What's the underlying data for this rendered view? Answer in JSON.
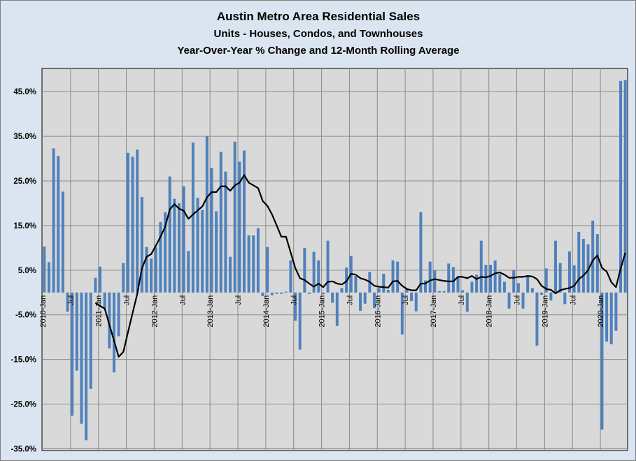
{
  "chart_data": {
    "type": "bar+line",
    "title": "Austin Metro Area Residential Sales",
    "subtitle1": "Units - Houses, Condos, and Townhouses",
    "subtitle2": "Year-Over-Year % Change and 12-Month Rolling Average",
    "xlabel": "",
    "ylabel": "",
    "ylim": [
      -35.4,
      50.2
    ],
    "yticks": [
      45,
      35,
      25,
      15,
      5,
      -5,
      -15,
      -25,
      -35
    ],
    "ytick_labels": [
      "45.0%",
      "35.0%",
      "25.0%",
      "15.0%",
      "5.0%",
      "-5.0%",
      "-15.0%",
      "-25.0%",
      "-35.0%"
    ],
    "start": "2010-Jan",
    "xtick_labels": [
      "2010-Jan",
      "Jul",
      "2011-Jan",
      "Jul",
      "2012-Jan",
      "Jul",
      "2013-Jan",
      "Jul",
      "2014-Jan",
      "Jul",
      "2015-Jan",
      "Jul",
      "2016-Jan",
      "Jul",
      "2017-Jan",
      "Jul",
      "2018-Jan",
      "Jul",
      "2019-Jan",
      "Jul",
      "2020-Jan"
    ],
    "grid": true,
    "colors": {
      "bars": "#4f81bd",
      "line": "#000000",
      "plot_bg": "#d9d9d9",
      "frame_bg": "#dbe5f1",
      "grid": "#8c8c8c"
    },
    "series": [
      {
        "name": "Year-Over-Year % Change",
        "type": "bar",
        "values": [
          10.3,
          6.8,
          32.3,
          30.6,
          22.6,
          -4.3,
          -27.6,
          -17.5,
          -29.4,
          -33.1,
          -21.6,
          3.3,
          5.8,
          -3.5,
          -12.5,
          -17.9,
          -9.8,
          6.6,
          31.3,
          30.4,
          32.0,
          21.4,
          10.2,
          7.6,
          10.1,
          15.8,
          18.0,
          26.0,
          21.0,
          20.0,
          23.8,
          9.3,
          33.6,
          21.2,
          18.5,
          35.0,
          27.9,
          18.2,
          31.5,
          27.1,
          8.0,
          33.8,
          29.3,
          31.8,
          12.8,
          12.8,
          14.4,
          -0.8,
          10.2,
          -0.6,
          -0.3,
          -0.3,
          0.2,
          7.2,
          -6.3,
          -12.8,
          10.0,
          -0.3,
          9.1,
          7.2,
          -0.4,
          11.6,
          -2.3,
          -7.5,
          1.0,
          5.6,
          8.2,
          3.7,
          -4.1,
          -2.5,
          4.6,
          -3.5,
          1.0,
          4.2,
          0.6,
          7.2,
          6.9,
          -9.4,
          0.8,
          -1.9,
          -4.2,
          18.0,
          2.7,
          6.9,
          4.9,
          0.3,
          0.3,
          6.5,
          5.7,
          3.5,
          0.5,
          -4.3,
          2.4,
          4.0,
          11.6,
          6.2,
          6.2,
          7.2,
          4.1,
          2.4,
          -3.6,
          5.0,
          2.1,
          -3.6,
          3.6,
          1.0,
          -11.9,
          -0.5,
          5.4,
          -1.8,
          11.6,
          6.6,
          -2.6,
          9.2,
          6.1,
          13.6,
          12.0,
          10.8,
          16.1,
          13.1,
          -30.7,
          -11.0,
          -11.6,
          -8.6,
          47.4,
          47.6
        ]
      },
      {
        "name": "12-Month Rolling Average",
        "type": "line",
        "values": [
          null,
          null,
          null,
          null,
          null,
          null,
          null,
          null,
          null,
          null,
          null,
          -2.3,
          -3.0,
          -3.6,
          -7.2,
          -10.8,
          -14.4,
          -13.3,
          -8.9,
          -4.6,
          -0.3,
          5.4,
          8.0,
          8.6,
          10.5,
          12.5,
          14.7,
          18.6,
          19.8,
          18.8,
          18.3,
          16.5,
          17.5,
          18.4,
          19.3,
          21.3,
          22.5,
          22.5,
          23.8,
          23.8,
          22.8,
          24.0,
          24.6,
          26.3,
          24.6,
          24.0,
          23.4,
          20.5,
          19.4,
          17.5,
          15.0,
          12.5,
          12.5,
          9.0,
          5.5,
          3.2,
          2.8,
          2.0,
          1.3,
          2.0,
          1.2,
          2.4,
          2.5,
          2.0,
          1.8,
          2.5,
          4.2,
          4.0,
          3.2,
          2.9,
          2.4,
          1.5,
          1.3,
          1.2,
          1.1,
          2.5,
          2.6,
          1.5,
          0.8,
          0.5,
          0.5,
          2.0,
          2.0,
          2.7,
          3.0,
          2.8,
          2.6,
          2.5,
          2.5,
          3.5,
          3.5,
          3.2,
          3.7,
          3.0,
          3.5,
          3.4,
          3.7,
          4.3,
          4.5,
          4.0,
          3.3,
          3.3,
          3.5,
          3.5,
          3.7,
          3.6,
          3.0,
          1.5,
          0.8,
          0.6,
          -0.2,
          0.5,
          0.8,
          1.0,
          1.5,
          3.0,
          3.8,
          5.0,
          7.2,
          8.3,
          5.5,
          4.7,
          2.3,
          1.2,
          5.3,
          8.9
        ]
      }
    ]
  }
}
